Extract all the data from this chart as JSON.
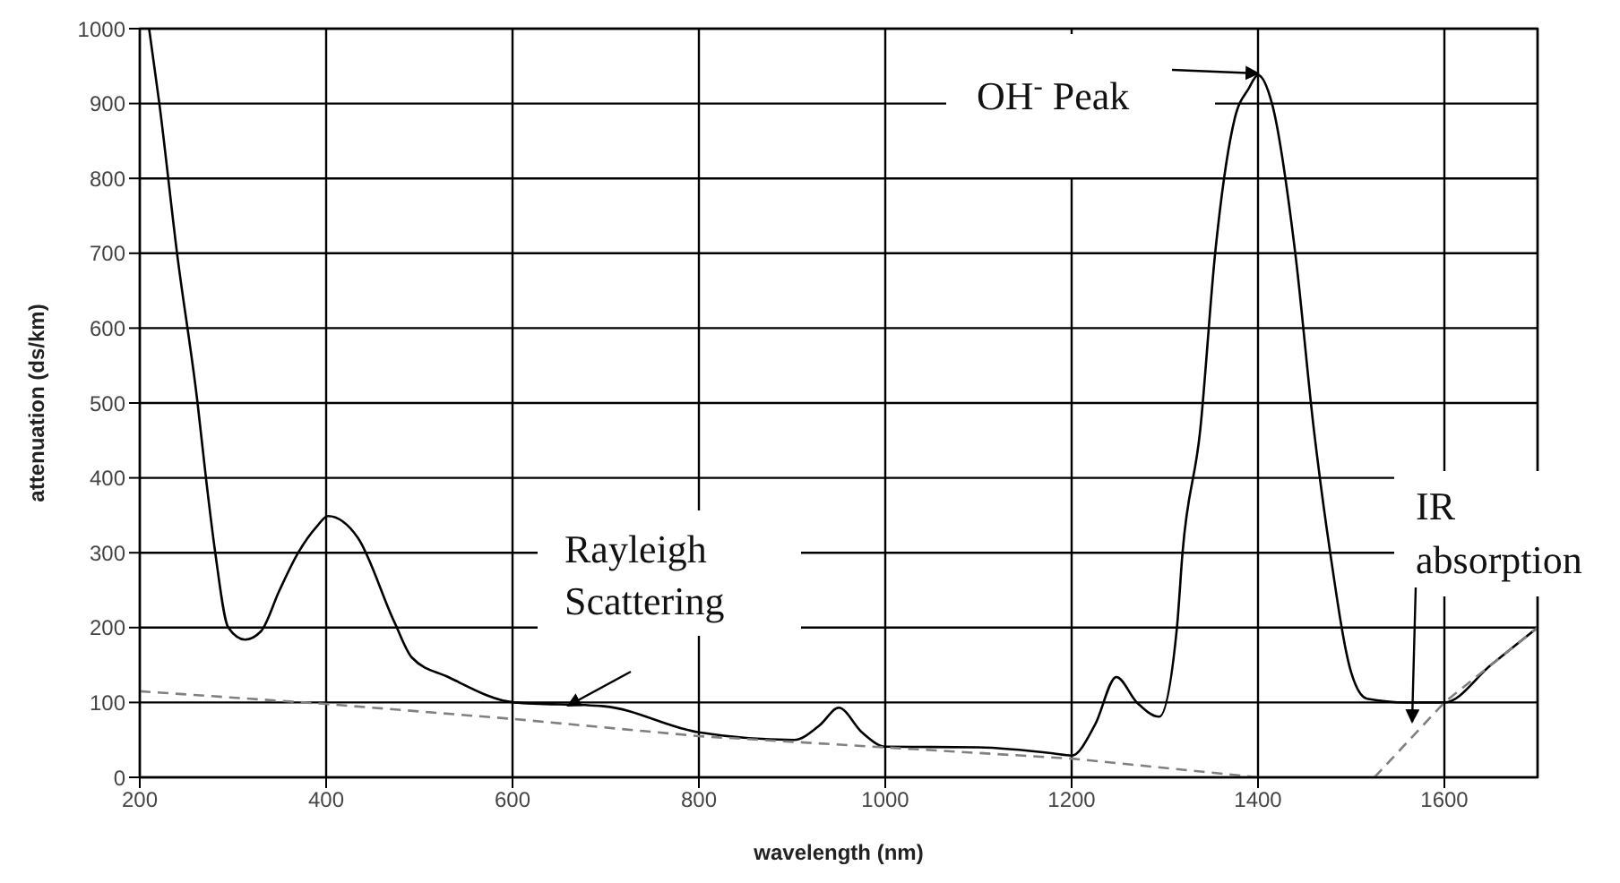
{
  "chart_data": {
    "type": "line",
    "xlabel": "wavelength (nm)",
    "ylabel": "attenuation (ds/km)",
    "xlim": [
      200,
      1700
    ],
    "xticks": [
      200,
      400,
      600,
      800,
      1000,
      1200,
      1400,
      1600
    ],
    "ylim": [
      0,
      1000
    ],
    "yticks": [
      0,
      100,
      200,
      300,
      400,
      500,
      600,
      700,
      800,
      900,
      1000
    ],
    "grid": true,
    "legend": false,
    "marker": "none",
    "series": [
      {
        "color": "#000000",
        "line_style": "solid",
        "x": [
          210,
          221,
          240,
          262,
          271,
          281,
          295,
          313,
          330,
          350,
          370,
          390,
          402,
          434,
          473,
          492,
          531,
          602,
          698,
          800,
          902,
          930,
          950,
          975,
          1000,
          1100,
          1180,
          1200,
          1225,
          1248,
          1270,
          1294,
          1313,
          1319,
          1338,
          1354,
          1375,
          1390,
          1400,
          1415,
          1440,
          1460,
          1477,
          1500,
          1517,
          1560,
          1600,
          1650,
          1700
        ],
        "values": [
          1000,
          900,
          700,
          500,
          400,
          300,
          200,
          184,
          195,
          250,
          300,
          335,
          349,
          320,
          208,
          160,
          134,
          100,
          95,
          60,
          50,
          70,
          93,
          60,
          41,
          40,
          32,
          29,
          70,
          134,
          100,
          81,
          200,
          300,
          464,
          700,
          880,
          920,
          938,
          900,
          700,
          464,
          304,
          140,
          105,
          100,
          100,
          150,
          200
        ]
      },
      {
        "color": "#808080",
        "line_style": "dashed",
        "x": [
          200,
          400,
          600,
          800,
          1000,
          1200,
          1400
        ],
        "values": [
          115,
          98,
          78,
          55,
          40,
          25,
          0
        ]
      },
      {
        "color": "#808080",
        "line_style": "dashed",
        "x": [
          1525,
          1600,
          1700
        ],
        "values": [
          0,
          100,
          200
        ]
      }
    ],
    "annotations": [
      "OH$^{-}$ Peak",
      "Rayleigh\nScattering",
      "IR\nabsorption"
    ]
  }
}
